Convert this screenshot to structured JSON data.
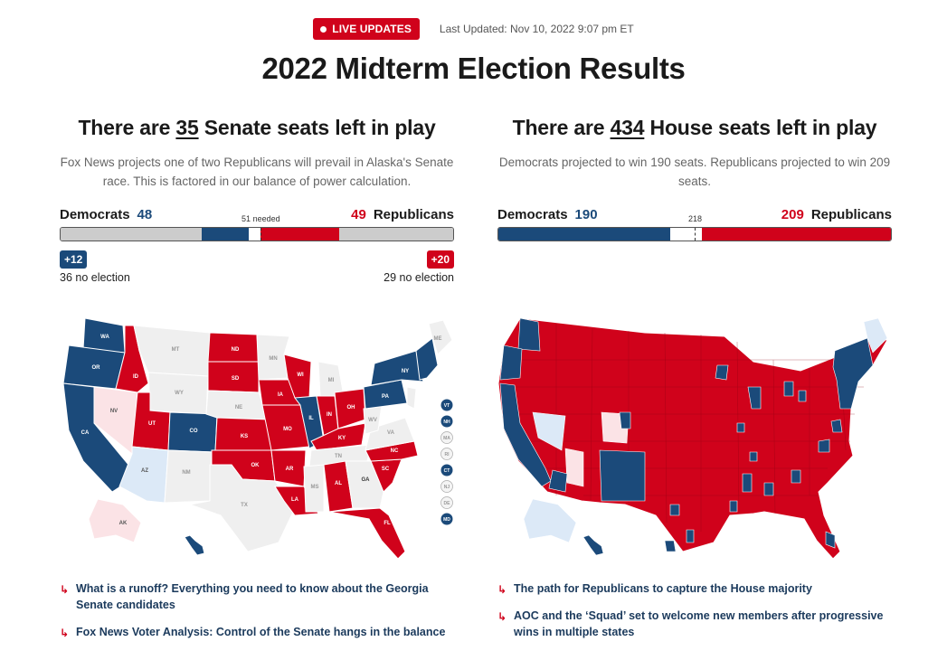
{
  "header": {
    "live_label": "LIVE UPDATES",
    "updated": "Last Updated: Nov 10, 2022 9:07 pm ET",
    "title": "2022 Midterm Election Results"
  },
  "senate": {
    "title_pre": "There are ",
    "title_num": "35",
    "title_post": " Senate seats left in play",
    "subtitle": "Fox News projects one of two Republicans will prevail in Alaska's Senate race. This is factored in our balance of power calculation.",
    "dem_label": "Democrats",
    "dem_count": "48",
    "rep_label": "Republicans",
    "rep_count": "49",
    "needed": "51 needed",
    "dem_gain": "+12",
    "rep_gain": "+20",
    "dem_no_election": "36 no election",
    "rep_no_election": "29 no election",
    "bar_seats": {
      "dem_no_election": 36,
      "dem_won": 12,
      "undecided": 3,
      "rep_won": 20,
      "rep_no_election": 29,
      "needed_at": 51,
      "total": 100
    },
    "state_labels": [
      "WA",
      "OR",
      "CA",
      "NV",
      "ID",
      "MT",
      "WY",
      "UT",
      "AZ",
      "CO",
      "NM",
      "ND",
      "SD",
      "NE",
      "KS",
      "OK",
      "TX",
      "MN",
      "IA",
      "MO",
      "AR",
      "LA",
      "WI",
      "IL",
      "MI",
      "IN",
      "OH",
      "KY",
      "TN",
      "MS",
      "AL",
      "GA",
      "FL",
      "SC",
      "NC",
      "VA",
      "WV",
      "PA",
      "NY",
      "ME",
      "AK",
      "VT",
      "NH",
      "MA",
      "RI",
      "CT",
      "NJ",
      "DE",
      "MD"
    ],
    "links": [
      "What is a runoff? Everything you need to know about the Georgia Senate candidates",
      "Fox News Voter Analysis: Control of the Senate hangs in the balance"
    ]
  },
  "house": {
    "title_pre": "There are ",
    "title_num": "434",
    "title_post": " House seats left in play",
    "subtitle": "Democrats projected to win 190 seats. Republicans projected to win 209 seats.",
    "dem_label": "Democrats",
    "dem_count": "190",
    "rep_label": "Republicans",
    "rep_count": "209",
    "needed": "218",
    "bar_seats": {
      "dem_won": 190,
      "undecided": 36,
      "rep_won": 209,
      "needed_at": 218,
      "total": 435
    },
    "links": [
      "The path for Republicans to capture the House majority",
      "AOC and the ‘Squad’ set to welcome new members after progressive wins in multiple states"
    ]
  },
  "colors": {
    "democrat": "#1b4a7a",
    "republican": "#d0021b",
    "no_election": "#cccccc",
    "lean_dem": "#dce9f7",
    "lean_rep": "#fbe3e6",
    "no_race": "#efefef"
  }
}
